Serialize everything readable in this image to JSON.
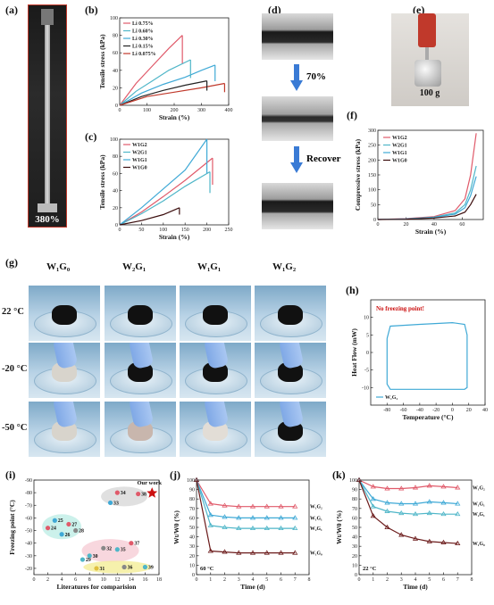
{
  "panels": {
    "a": {
      "label": "(a)",
      "caption": "380%"
    },
    "b": {
      "label": "(b)",
      "chart_data": {
        "type": "line",
        "xlabel": "Strain (%)",
        "ylabel": "Tensile stress (kPa)",
        "xlim": [
          0,
          400
        ],
        "ylim": [
          0,
          100
        ],
        "xticks": [
          0,
          100,
          200,
          300,
          400
        ],
        "yticks": [
          0,
          20,
          40,
          60,
          80,
          100
        ],
        "series": [
          {
            "name": "Li 0.75%",
            "color": "#e05a6a",
            "x": [
              0,
              60,
              120,
              180,
              230
            ],
            "y": [
              0,
              25,
              45,
              65,
              80
            ]
          },
          {
            "name": "Li 0.60%",
            "color": "#4fb6c8",
            "x": [
              0,
              60,
              120,
              180,
              260
            ],
            "y": [
              0,
              16,
              28,
              40,
              52
            ]
          },
          {
            "name": "Li 0.30%",
            "color": "#3fa9d6",
            "x": [
              0,
              80,
              160,
              240,
              300,
              350
            ],
            "y": [
              0,
              14,
              24,
              32,
              40,
              46
            ]
          },
          {
            "name": "Li 0.15%",
            "color": "#222222",
            "x": [
              0,
              80,
              160,
              240,
              320
            ],
            "y": [
              0,
              10,
              17,
              23,
              28
            ]
          },
          {
            "name": "Li 0.075%",
            "color": "#c0392b",
            "x": [
              0,
              100,
              200,
              300,
              385
            ],
            "y": [
              0,
              10,
              15,
              20,
              25
            ]
          }
        ]
      }
    },
    "c": {
      "label": "(c)",
      "chart_data": {
        "type": "line",
        "xlabel": "Strain (%)",
        "ylabel": "Tensile stress (kPa)",
        "xlim": [
          0,
          250
        ],
        "ylim": [
          0,
          100
        ],
        "xticks": [
          0,
          50,
          100,
          150,
          200,
          250
        ],
        "yticks": [
          0,
          20,
          40,
          60,
          80,
          100
        ],
        "series": [
          {
            "name": "W1G2",
            "color": "#e05a6a",
            "x": [
              0,
              50,
              100,
              150,
              213
            ],
            "y": [
              0,
              15,
              33,
              52,
              78
            ]
          },
          {
            "name": "W2G1",
            "color": "#4fb6c8",
            "x": [
              0,
              50,
              100,
              150,
              207
            ],
            "y": [
              0,
              13,
              28,
              45,
              62
            ]
          },
          {
            "name": "W1G1",
            "color": "#3fa9d6",
            "x": [
              0,
              50,
              100,
              150,
              200
            ],
            "y": [
              0,
              20,
              42,
              64,
              100
            ]
          },
          {
            "name": "W1G0",
            "color": "#3b0d0d",
            "x": [
              0,
              50,
              100,
              137
            ],
            "y": [
              0,
              5,
              12,
              20
            ]
          }
        ]
      }
    },
    "d": {
      "label": "(d)",
      "step1": "70%",
      "step2": "Recover"
    },
    "e": {
      "label": "(e)",
      "weight": "100 g"
    },
    "f": {
      "label": "(f)",
      "chart_data": {
        "type": "line",
        "xlabel": "Strain (%)",
        "ylabel": "Compressive stress (kPa)",
        "xlim": [
          0,
          75
        ],
        "ylim": [
          0,
          300
        ],
        "xticks": [
          0,
          20,
          40,
          60
        ],
        "yticks": [
          0,
          50,
          100,
          150,
          200,
          250,
          300
        ],
        "series": [
          {
            "name": "W1G2",
            "color": "#e05a6a",
            "x": [
              0,
              20,
              40,
              55,
              62,
              66,
              70
            ],
            "y": [
              0,
              3,
              10,
              30,
              70,
              150,
              290
            ]
          },
          {
            "name": "W2G1",
            "color": "#4fb6c8",
            "x": [
              0,
              20,
              40,
              55,
              62,
              66,
              70
            ],
            "y": [
              0,
              2,
              8,
              22,
              50,
              100,
              180
            ]
          },
          {
            "name": "W1G1",
            "color": "#3fa9d6",
            "x": [
              0,
              20,
              40,
              55,
              62,
              66,
              70
            ],
            "y": [
              0,
              2,
              7,
              18,
              40,
              80,
              145
            ]
          },
          {
            "name": "W1G0",
            "color": "#3b0d0d",
            "x": [
              0,
              20,
              40,
              55,
              62,
              66,
              70
            ],
            "y": [
              0,
              1,
              5,
              12,
              25,
              50,
              85
            ]
          }
        ]
      }
    },
    "g": {
      "label": "(g)",
      "columns": [
        "W₁G₀",
        "W₂G₁",
        "W₁G₁",
        "W₁G₂"
      ],
      "rows": [
        "22 °C",
        "-20 °C",
        "-50 °C"
      ]
    },
    "h": {
      "label": "(h)",
      "annotation": "No freezing point!",
      "legend": "W₁G₂",
      "chart_data": {
        "type": "line",
        "xlabel": "Temperature (°C)",
        "ylabel": "Heat Flow (mW)",
        "xlim": [
          -100,
          40
        ],
        "ylim": [
          -15,
          15
        ],
        "xticks": [
          -80,
          -60,
          -40,
          -20,
          0,
          20,
          40
        ],
        "yticks": [
          -10,
          -5,
          0,
          5,
          10
        ],
        "series": [
          {
            "name": "W1G2",
            "color": "#3fa9d6",
            "x": [
              -80,
              -76,
              -40,
              0,
              15,
              18,
              18,
              15,
              -76,
              -80,
              -80
            ],
            "y": [
              4,
              7.5,
              8,
              8.5,
              8,
              5,
              -10,
              -10.5,
              -10.5,
              -9,
              4
            ]
          }
        ]
      }
    },
    "i": {
      "label": "(i)",
      "our_work": "Our work",
      "chart_data": {
        "type": "scatter",
        "xlabel": "Literatures for comparision",
        "ylabel": "Freezing point (°C)",
        "xlim": [
          0,
          18
        ],
        "ylim": [
          -15,
          -90
        ],
        "xticks": [
          0,
          2,
          4,
          6,
          8,
          10,
          12,
          14,
          16,
          18
        ],
        "yticks": [
          -20,
          -30,
          -40,
          -50,
          -60,
          -70,
          -80,
          -90
        ],
        "points": [
          {
            "label": "24",
            "x": 2,
            "y": -52,
            "color": "#e05a6a"
          },
          {
            "label": "25",
            "x": 3,
            "y": -58,
            "color": "#3fa9d6"
          },
          {
            "label": "26",
            "x": 4,
            "y": -47,
            "color": "#3fa9d6"
          },
          {
            "label": "27",
            "x": 5,
            "y": -55,
            "color": "#e05a6a"
          },
          {
            "label": "28",
            "x": 6,
            "y": -50,
            "color": "#888888"
          },
          {
            "label": "29",
            "x": 7,
            "y": -27,
            "color": "#4fb6c8"
          },
          {
            "label": "30",
            "x": 8,
            "y": -30,
            "color": "#4fb6c8"
          },
          {
            "label": "31",
            "x": 9,
            "y": -20,
            "color": "#e0c040"
          },
          {
            "label": "32",
            "x": 10,
            "y": -36,
            "color": "#888888"
          },
          {
            "label": "33",
            "x": 11,
            "y": -72,
            "color": "#3fa9d6"
          },
          {
            "label": "34",
            "x": 12,
            "y": -80,
            "color": "#e05a6a"
          },
          {
            "label": "35",
            "x": 12,
            "y": -35,
            "color": "#4fb6c8"
          },
          {
            "label": "36",
            "x": 13,
            "y": -21,
            "color": "#888888"
          },
          {
            "label": "37",
            "x": 14,
            "y": -40,
            "color": "#e05a6a"
          },
          {
            "label": "38",
            "x": 15,
            "y": -79,
            "color": "#e05a6a"
          },
          {
            "label": "39",
            "x": 16,
            "y": -21,
            "color": "#4fb6c8"
          },
          {
            "label": "Our work",
            "x": 17,
            "y": -80,
            "color": "#cc1111"
          }
        ]
      }
    },
    "j": {
      "label": "(j)",
      "condition": "60 °C",
      "chart_data": {
        "type": "line",
        "xlabel": "Time (d)",
        "ylabel": "Wt/W0 (%)",
        "xlim": [
          0,
          8
        ],
        "ylim": [
          0,
          100
        ],
        "xticks": [
          0,
          1,
          2,
          3,
          4,
          5,
          6,
          7,
          8
        ],
        "yticks": [
          0,
          10,
          20,
          30,
          40,
          50,
          60,
          70,
          80,
          90,
          100
        ],
        "series": [
          {
            "name": "W₁G₂",
            "color": "#e05a6a",
            "x": [
              0,
              1,
              2,
              3,
              4,
              5,
              6,
              7
            ],
            "y": [
              100,
              75,
              73,
              72,
              72,
              72,
              72,
              72
            ]
          },
          {
            "name": "W₁G₁",
            "color": "#3fa9d6",
            "x": [
              0,
              1,
              2,
              3,
              4,
              5,
              6,
              7
            ],
            "y": [
              100,
              63,
              61,
              60,
              60,
              60,
              60,
              60
            ]
          },
          {
            "name": "W₂G₁",
            "color": "#4fb6c8",
            "x": [
              0,
              1,
              2,
              3,
              4,
              5,
              6,
              7
            ],
            "y": [
              100,
              52,
              50,
              49,
              49,
              49,
              49,
              49
            ]
          },
          {
            "name": "W₁G₀",
            "color": "#6b1a1a",
            "x": [
              0,
              1,
              2,
              3,
              4,
              5,
              6,
              7
            ],
            "y": [
              100,
              25,
              24,
              23,
              23,
              23,
              23,
              23
            ]
          }
        ]
      }
    },
    "k": {
      "label": "(k)",
      "condition": "22 °C",
      "chart_data": {
        "type": "line",
        "xlabel": "Time (d)",
        "ylabel": "Wt/W0 (%)",
        "xlim": [
          0,
          8
        ],
        "ylim": [
          0,
          100
        ],
        "xticks": [
          0,
          1,
          2,
          3,
          4,
          5,
          6,
          7,
          8
        ],
        "yticks": [
          0,
          10,
          20,
          30,
          40,
          50,
          60,
          70,
          80,
          90,
          100
        ],
        "series": [
          {
            "name": "W₁G₂",
            "color": "#e05a6a",
            "x": [
              0,
              1,
              2,
              3,
              4,
              5,
              6,
              7
            ],
            "y": [
              100,
              93,
              91,
              91,
              92,
              94,
              93,
              92
            ]
          },
          {
            "name": "W₁G₁",
            "color": "#3fa9d6",
            "x": [
              0,
              1,
              2,
              3,
              4,
              5,
              6,
              7
            ],
            "y": [
              100,
              80,
              76,
              75,
              75,
              77,
              76,
              75
            ]
          },
          {
            "name": "W₂G₁",
            "color": "#4fb6c8",
            "x": [
              0,
              1,
              2,
              3,
              4,
              5,
              6,
              7
            ],
            "y": [
              100,
              72,
              67,
              65,
              64,
              65,
              64,
              64
            ]
          },
          {
            "name": "W₁G₀",
            "color": "#6b1a1a",
            "x": [
              0,
              1,
              2,
              3,
              4,
              5,
              6,
              7
            ],
            "y": [
              100,
              62,
              50,
              42,
              38,
              35,
              34,
              33
            ]
          }
        ]
      }
    }
  }
}
